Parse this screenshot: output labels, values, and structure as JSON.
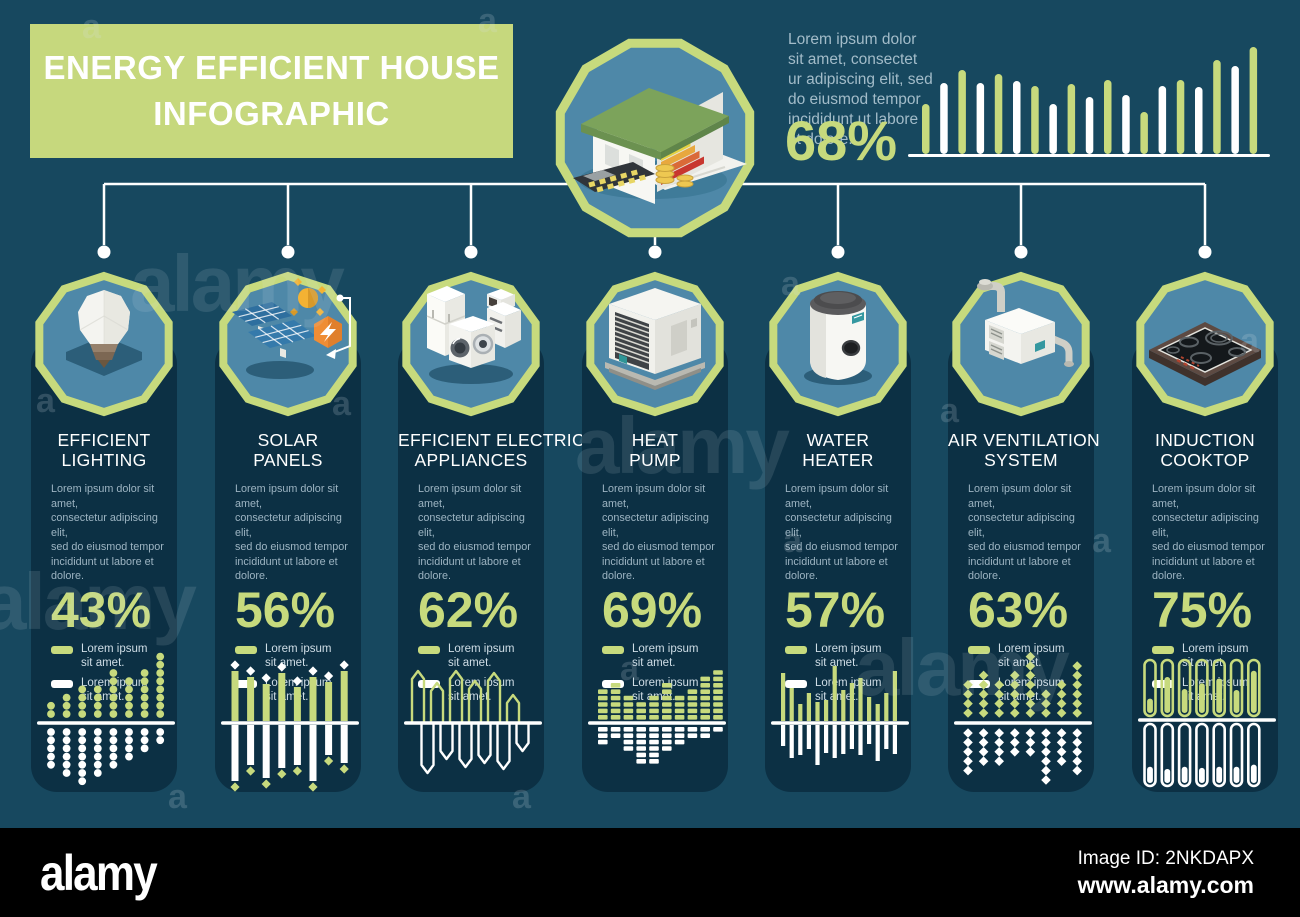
{
  "header": {
    "title_line1": "ENERGY EFFICIENT HOUSE",
    "title_line2": "INFOGRAPHIC"
  },
  "summary": {
    "description": "Lorem ipsum dolor\nsit amet, consectet\nur adipiscing elit, sed\ndo eiusmod tempor\nincididunt ut labore\net dolore.",
    "percent": "68%"
  },
  "legend": {
    "item1_text": "Lorem ipsum\nsit amet.",
    "item2_text": "Lorem ipsum\nsit amet.",
    "item1_color": "#c7da7d",
    "item2_color": "#ffffff"
  },
  "categories": [
    {
      "icon": "light-bulb-icon",
      "title_line1": "EFFICIENT",
      "title_line2": "LIGHTING",
      "description": "Lorem ipsum dolor sit amet,\nconsectetur adipiscing elit,\nsed do eiusmod tempor\nincididunt ut labore et dolore.",
      "percent": "43%"
    },
    {
      "icon": "solar-panels-icon",
      "title_line1": "SOLAR",
      "title_line2": "PANELS",
      "description": "Lorem ipsum dolor sit amet,\nconsectetur adipiscing elit,\nsed do eiusmod tempor\nincididunt ut labore et dolore.",
      "percent": "56%"
    },
    {
      "icon": "electric-appliances-icon",
      "title_line1": "EFFICIENT ELECTRIC",
      "title_line2": "APPLIANCES",
      "description": "Lorem ipsum dolor sit amet,\nconsectetur adipiscing elit,\nsed do eiusmod tempor\nincididunt ut labore et dolore.",
      "percent": "62%"
    },
    {
      "icon": "heat-pump-icon",
      "title_line1": "HEAT",
      "title_line2": "PUMP",
      "description": "Lorem ipsum dolor sit amet,\nconsectetur adipiscing elit,\nsed do eiusmod tempor\nincididunt ut labore et dolore.",
      "percent": "69%"
    },
    {
      "icon": "water-heater-icon",
      "title_line1": "WATER",
      "title_line2": "HEATER",
      "description": "Lorem ipsum dolor sit amet,\nconsectetur adipiscing elit,\nsed do eiusmod tempor\nincididunt ut labore et dolore.",
      "percent": "57%"
    },
    {
      "icon": "air-ventilation-icon",
      "title_line1": "AIR VENTILATION",
      "title_line2": "SYSTEM",
      "description": "Lorem ipsum dolor sit amet,\nconsectetur adipiscing elit,\nsed do eiusmod tempor\nincididunt ut labore et dolore.",
      "percent": "63%"
    },
    {
      "icon": "induction-cooktop-icon",
      "title_line1": "INDUCTION",
      "title_line2": "COOKTOP",
      "description": "Lorem ipsum dolor sit amet,\nconsectetur adipiscing elit,\nsed do eiusmod tempor\nincididunt ut labore et dolore.",
      "percent": "75%"
    }
  ],
  "chart_data": [
    {
      "id": "overview-bars",
      "type": "bar",
      "values": [
        49,
        70,
        83,
        70,
        79,
        72,
        67,
        49,
        69,
        56,
        73,
        58,
        41,
        67,
        73,
        66,
        93,
        87,
        106
      ],
      "palette_alternate": [
        "#c7da7d",
        "#ffffff"
      ],
      "baseline": true
    },
    {
      "id": "efficient-lighting",
      "type": "dot-columns",
      "above": [
        2,
        3,
        4,
        4,
        6,
        5,
        6,
        8
      ],
      "below": [
        5,
        6,
        7,
        6,
        5,
        4,
        3,
        2
      ]
    },
    {
      "id": "solar-panels",
      "type": "bar-diamond",
      "above": [
        50,
        44,
        37,
        48,
        34,
        44,
        39,
        50
      ],
      "below": [
        56,
        40,
        53,
        43,
        40,
        56,
        30,
        38
      ]
    },
    {
      "id": "electric-appliances",
      "type": "loop-line",
      "above": [
        52,
        40,
        52,
        42,
        50,
        28
      ],
      "below": [
        50,
        36,
        44,
        40,
        46,
        28
      ]
    },
    {
      "id": "heat-pump",
      "type": "segment-columns",
      "above": [
        5,
        6,
        4,
        3,
        4,
        6,
        4,
        5,
        7,
        8
      ],
      "below": [
        3,
        2,
        4,
        6,
        6,
        4,
        3,
        2,
        2,
        1
      ]
    },
    {
      "id": "water-heater",
      "type": "thin-bars",
      "above": [
        48,
        33,
        17,
        28,
        19,
        21,
        55,
        31,
        38,
        43,
        24,
        17,
        28,
        50
      ],
      "below": [
        21,
        33,
        30,
        24,
        40,
        28,
        33,
        29,
        24,
        30,
        19,
        36,
        24,
        29
      ]
    },
    {
      "id": "air-ventilation",
      "type": "diamond-columns",
      "above": [
        4,
        5,
        4,
        5,
        7,
        3,
        4,
        6
      ],
      "below": [
        5,
        4,
        4,
        3,
        3,
        6,
        4,
        5
      ]
    },
    {
      "id": "induction-cooktop",
      "type": "tubes",
      "above": [
        0.3,
        0.75,
        0.5,
        0.62,
        0.72,
        0.48,
        0.88
      ],
      "below": [
        0.3,
        0.26,
        0.3,
        0.28,
        0.3,
        0.3,
        0.34
      ]
    }
  ],
  "colors": {
    "background": "#17485f",
    "panel": "#0c3044",
    "accent_green": "#c7da7d",
    "octagon_fill": "#4e88a8",
    "muted_text": "#9db4c2",
    "white": "#ffffff",
    "footer_black": "#000000"
  },
  "footer": {
    "logo": "alamy",
    "image_id": "Image ID: 2NKDAPX",
    "url": "www.alamy.com"
  },
  "watermark": {
    "big_text": "alamy",
    "small_letter": "a"
  }
}
